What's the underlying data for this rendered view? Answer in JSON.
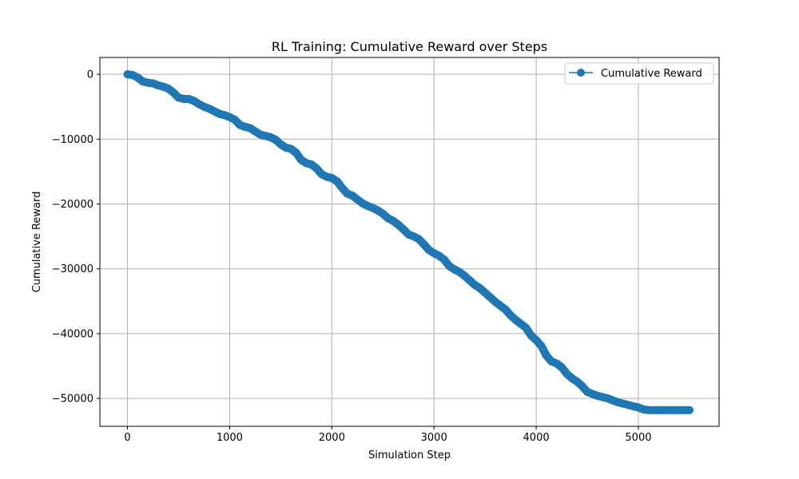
{
  "chart_data": {
    "type": "line",
    "title": "RL Training: Cumulative Reward over Steps",
    "xlabel": "Simulation Step",
    "ylabel": "Cumulative Reward",
    "xlim": [
      -270,
      5790
    ],
    "ylim": [
      -54300,
      2600
    ],
    "x_ticks": [
      0,
      1000,
      2000,
      3000,
      4000,
      5000
    ],
    "y_ticks": [
      0,
      -10000,
      -20000,
      -30000,
      -40000,
      -50000
    ],
    "x_tick_labels": [
      "0",
      "1000",
      "2000",
      "3000",
      "4000",
      "5000"
    ],
    "y_tick_labels": [
      "0",
      "−10000",
      "−20000",
      "−30000",
      "−40000",
      "−50000"
    ],
    "grid": true,
    "legend_position": "upper right",
    "series": [
      {
        "name": "Cumulative Reward",
        "color": "#1f77b4",
        "marker": "circle",
        "x": [
          0,
          50,
          100,
          150,
          200,
          250,
          300,
          350,
          400,
          450,
          500,
          550,
          600,
          650,
          700,
          750,
          800,
          850,
          900,
          950,
          1000,
          1050,
          1100,
          1150,
          1200,
          1250,
          1300,
          1350,
          1400,
          1450,
          1500,
          1550,
          1600,
          1650,
          1700,
          1750,
          1800,
          1850,
          1900,
          1950,
          2000,
          2050,
          2100,
          2150,
          2200,
          2250,
          2300,
          2350,
          2400,
          2450,
          2500,
          2550,
          2600,
          2650,
          2700,
          2750,
          2800,
          2850,
          2900,
          2950,
          3000,
          3050,
          3100,
          3150,
          3200,
          3250,
          3300,
          3350,
          3400,
          3450,
          3500,
          3550,
          3600,
          3650,
          3700,
          3750,
          3800,
          3850,
          3900,
          3950,
          4000,
          4050,
          4100,
          4150,
          4200,
          4250,
          4300,
          4350,
          4400,
          4450,
          4500,
          4550,
          4600,
          4650,
          4700,
          4750,
          4800,
          4850,
          4900,
          4950,
          5000,
          5050,
          5100,
          5150,
          5200,
          5250,
          5300,
          5350,
          5400,
          5450,
          5500
        ],
        "y": [
          0,
          -100,
          -500,
          -1100,
          -1300,
          -1400,
          -1700,
          -1900,
          -2200,
          -2800,
          -3600,
          -3800,
          -3800,
          -4100,
          -4600,
          -5000,
          -5300,
          -5700,
          -6100,
          -6300,
          -6600,
          -7000,
          -7800,
          -8100,
          -8300,
          -8800,
          -9300,
          -9500,
          -9700,
          -10100,
          -10800,
          -11300,
          -11500,
          -12100,
          -13200,
          -13700,
          -13900,
          -14500,
          -15400,
          -15800,
          -16000,
          -16500,
          -17500,
          -18400,
          -18700,
          -19300,
          -19900,
          -20300,
          -20600,
          -21000,
          -21500,
          -22200,
          -22600,
          -23200,
          -23900,
          -24700,
          -25000,
          -25400,
          -26200,
          -27100,
          -27600,
          -28000,
          -28600,
          -29600,
          -30100,
          -30500,
          -31100,
          -31800,
          -32500,
          -33000,
          -33700,
          -34400,
          -35100,
          -35700,
          -36300,
          -37200,
          -37900,
          -38500,
          -39100,
          -40300,
          -41000,
          -41900,
          -43400,
          -44300,
          -44600,
          -45200,
          -46200,
          -46900,
          -47400,
          -48100,
          -49000,
          -49300,
          -49600,
          -49800,
          -50000,
          -50300,
          -50600,
          -50800,
          -51000,
          -51200,
          -51400,
          -51700,
          -51800,
          -51800,
          -51800,
          -51800,
          -51800,
          -51800,
          -51800,
          -51800,
          -51800
        ]
      }
    ]
  }
}
